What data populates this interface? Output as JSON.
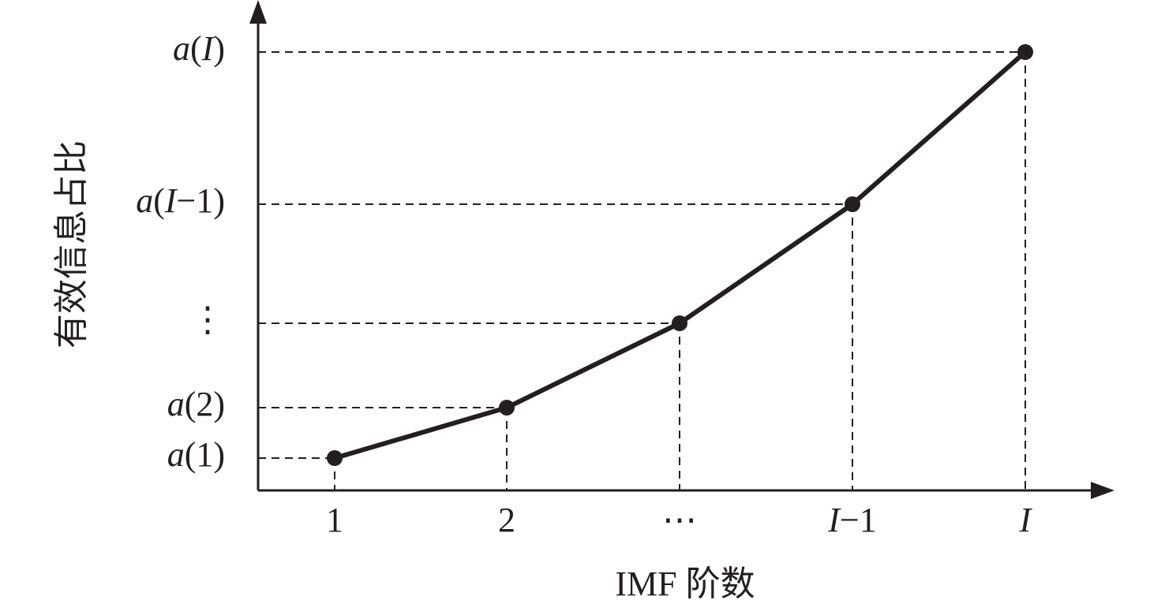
{
  "y_axis_label": "有效信息占比",
  "x_axis_label": "IMF 阶数",
  "x_labels": [
    "1",
    "2",
    "⋯",
    "I−1",
    "I"
  ],
  "y_labels": [
    "a(1)",
    "a(2)",
    "⋮",
    "a(I−1)",
    "a(I)"
  ]
}
